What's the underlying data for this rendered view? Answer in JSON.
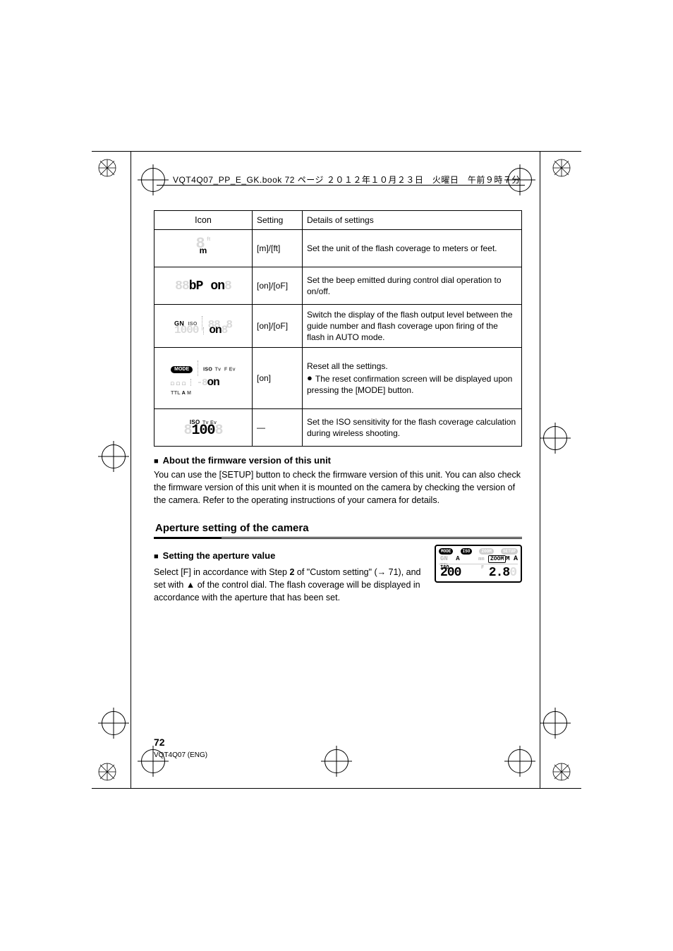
{
  "header": "VQT4Q07_PP_E_GK.book  72 ページ  ２０１２年１０月２３日　火曜日　午前９時７分",
  "table": {
    "headers": [
      "Icon",
      "Setting",
      "Details of settings"
    ],
    "rows": [
      {
        "icon_kind": "distance_unit",
        "setting": "[m]/[ft]",
        "detail": "Set the unit of the flash coverage to meters or feet.",
        "unit_active": "m",
        "unit_ghost": "ft",
        "lcd_ghost": "8"
      },
      {
        "icon_kind": "beep_on",
        "setting": "[on]/[oF]",
        "detail": "Set the beep emitted during control dial operation to on/off.",
        "lcd_left_ghost": "88",
        "lcd_mid": "bP",
        "lcd_right": "on",
        "lcd_right_ghost": "8"
      },
      {
        "icon_kind": "gn_on",
        "setting": "[on]/[oF]",
        "detail": "Switch the display of the flash output level between the guide number and flash coverage upon firing of the flash in AUTO mode.",
        "gn_on": "GN",
        "iso_ghost": "ISO",
        "lcd_left_ghost": "1000",
        "lcd_right": "on",
        "lcd_right_ghost": "88 8"
      },
      {
        "icon_kind": "reset",
        "setting": "[on]",
        "detail_line1": "Reset all the settings.",
        "detail_line2": "The reset confirmation screen will be displayed upon pressing the [MODE] button.",
        "pill": "MODE",
        "labels_ghost": "ISO Tv  F Ev",
        "labels_row2": "TTL  A M",
        "labels_row2_on": "A",
        "lcd_right_ghost": "88 8",
        "lcd_right": "on",
        "lcd_right_on_prefix": "-8"
      },
      {
        "icon_kind": "iso_100",
        "setting": "—",
        "detail": "Set the ISO sensitivity for the flash coverage calculation during wireless shooting.",
        "iso_on": "ISO",
        "labels_ghost": "Tv Ev",
        "lcd_val": "100",
        "lcd_ghost_left": "8",
        "lcd_ghost_right": "8"
      }
    ]
  },
  "versions_heading": "About the firmware version of this unit",
  "versions_body": "You can use the [SETUP] button to check the firmware version of this unit. You can also check the firmware version of this unit when it is mounted on the camera by checking the version of the camera. Refer to the operating instructions of your camera for details.",
  "aperture_title": "Aperture setting of the camera",
  "aperture_heading": "Setting the aperture value",
  "aperture_body_html": "Select [F] in accordance with Step <b>2</b> of \"Custom setting\" (→ 71), and set with <b>▲</b> of the control dial. The flash coverage will be displayed in accordance with the aperture that has been set.",
  "lcd_preview": {
    "pills": [
      "MODE",
      "ISO",
      "ZOOM",
      "SETUP"
    ],
    "pills_ghost_idx": [
      2,
      3
    ],
    "row1_left_ghost": "GN",
    "row1_mid_on": "A",
    "row1_right_ghost": "mm",
    "row1_zoom_on": "M",
    "row1_zoom_label": "ZOOM A",
    "row1_ttl_ghost": "TTL",
    "row1_far_right": "A",
    "iso_label": "ISO",
    "f_label_ghost": "F",
    "seg_left": "200",
    "seg_right": "2.8",
    "seg_right_ghost_trail": "0"
  },
  "footer_page": "72",
  "footer_code": "VQT4Q07 (ENG)"
}
